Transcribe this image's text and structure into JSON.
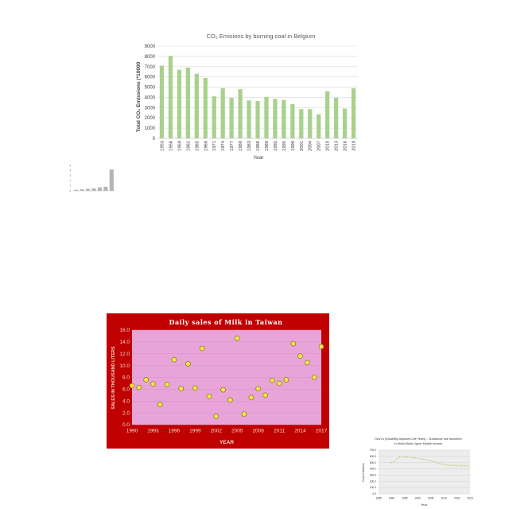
{
  "chart_data": [
    {
      "type": "bar",
      "title": "CO₂ Emisions by burning coal in Belgium",
      "xlabel": "Year",
      "ylabel": "Total CO₂ Emissions (*10000",
      "categories": [
        "1953",
        "1956",
        "1959",
        "1962",
        "1965",
        "1968",
        "1971",
        "1974",
        "1977",
        "1980",
        "1983",
        "1986",
        "1989",
        "1992",
        "1995",
        "1998",
        "2001",
        "2004",
        "2007",
        "2010",
        "2013",
        "2016",
        "2019"
      ],
      "values": [
        7100,
        8050,
        6700,
        6900,
        6300,
        5900,
        4100,
        4900,
        3950,
        4800,
        3700,
        3650,
        4050,
        3850,
        3750,
        3350,
        2850,
        2850,
        2350,
        4600,
        3950,
        2900,
        4900
      ],
      "ylim": [
        0,
        9000
      ],
      "yticks": [
        "0",
        "1000",
        "2000",
        "3000",
        "4000",
        "5000",
        "6000",
        "7000",
        "8000",
        "9000"
      ],
      "grid": true,
      "bar_color": "#a9d18e"
    },
    {
      "type": "bar",
      "title": "",
      "xlabel": "",
      "ylabel": "",
      "categories": [
        "",
        "",
        "",
        "",
        "",
        "",
        ""
      ],
      "values": [
        0.2,
        0.3,
        0.4,
        0.5,
        0.7,
        0.8,
        4.2
      ],
      "ylim": [
        0,
        5
      ],
      "yticks": [
        "0",
        "1",
        "2",
        "3",
        "4",
        "5"
      ],
      "bar_color": "#b5b5b5"
    },
    {
      "type": "scatter",
      "title": "Daily sales of Milk in Taiwan",
      "xlabel": "YEAR",
      "ylabel": "SALES IN THOUSAND LITERS",
      "x": [
        1990,
        1991,
        1992,
        1993,
        1994,
        1995,
        1996,
        1997,
        1998,
        1999,
        2000,
        2001,
        2002,
        2003,
        2004,
        2005,
        2006,
        2007,
        2008,
        2009,
        2010,
        2011,
        2012,
        2013,
        2014,
        2015,
        2016,
        2017
      ],
      "y": [
        6.6,
        6.3,
        7.6,
        6.9,
        3.4,
        6.8,
        11.0,
        6.1,
        10.3,
        6.2,
        12.9,
        4.8,
        1.4,
        5.9,
        4.2,
        14.6,
        1.8,
        4.6,
        6.1,
        5.0,
        7.5,
        7.0,
        7.6,
        13.7,
        11.6,
        10.5,
        8.0,
        13.2
      ],
      "xticks": [
        "1990",
        "1993",
        "1996",
        "1999",
        "2002",
        "2005",
        "2008",
        "2011",
        "2014",
        "2017"
      ],
      "yticks": [
        "0.0",
        "2.0",
        "4.0",
        "6.0",
        "8.0",
        "10.0",
        "12.0",
        "14.0",
        "16.0"
      ],
      "xlim": [
        1990,
        2017
      ],
      "ylim": [
        0,
        16
      ],
      "grid": true,
      "colors": {
        "frame": "#c00000",
        "plot": "#e8a4d8",
        "marker": "#f2e34a",
        "title": "#ffffff",
        "axis_text": "#f7d7c4"
      }
    },
    {
      "type": "scatter",
      "title": "DALYs (Disability-Adjusted Life Years) - Substance use disorders in World Bank Upper Middle Income",
      "title_lines": [
        "DALYs (Disability-Adjusted Life Years) - Substance use disorders",
        "in World Bank Upper Middle Income"
      ],
      "xlabel": "Year",
      "ylabel": "Cost in Millions",
      "x": [
        1990,
        1991,
        1992,
        1993,
        1994,
        1995,
        1996,
        1997,
        1998,
        1999,
        2000,
        2001,
        2002,
        2003,
        2004,
        2005,
        2006,
        2007,
        2008,
        2009,
        2010,
        2011,
        2012,
        2013,
        2014,
        2015,
        2016,
        2017,
        2018,
        2019
      ],
      "y": [
        500,
        520,
        560,
        585,
        600,
        595,
        590,
        585,
        580,
        575,
        570,
        560,
        555,
        550,
        540,
        530,
        520,
        505,
        490,
        480,
        470,
        465,
        460,
        458,
        455,
        452,
        450,
        450,
        448,
        448
      ],
      "xticks": [
        "1985",
        "1990",
        "1995",
        "2000",
        "2005",
        "2010",
        "2015",
        "2020"
      ],
      "yticks": [
        "0.0",
        "100.0",
        "200.0",
        "300.0",
        "400.0",
        "500.0",
        "600.0",
        "700.0"
      ],
      "xlim": [
        1985,
        2020
      ],
      "ylim": [
        0,
        700
      ],
      "grid": true,
      "colors": {
        "marker": "#c8d29a"
      }
    }
  ]
}
